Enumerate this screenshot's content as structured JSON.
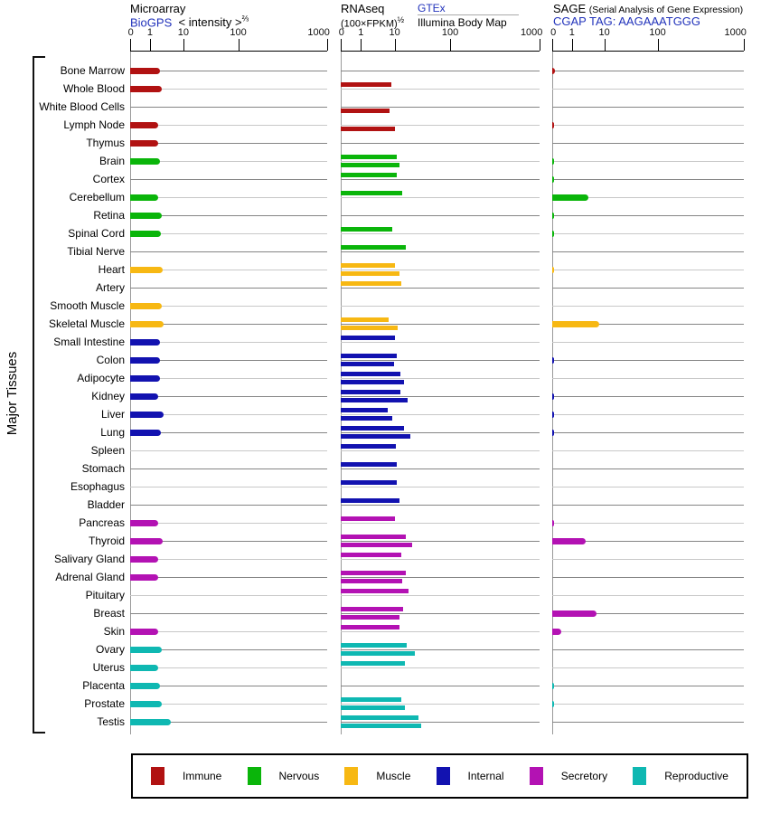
{
  "header": {
    "microarray": {
      "title": "Microarray",
      "link": "BioGPS",
      "scale_label": "< intensity >",
      "scale_exponent": "⅔"
    },
    "rnaseq": {
      "title": "RNAseq",
      "unit": "(100×FPKM)",
      "unit_exponent": "½",
      "link": "GTEx",
      "sub_source": "Illumina Body Map"
    },
    "sage": {
      "title": "SAGE",
      "subtitle": "(Serial Analysis of Gene Expression)",
      "link_line": "CGAP TAG: AAGAAATGGG"
    }
  },
  "side_label": "Major Tissues",
  "axis_ticks": [
    0,
    1,
    10,
    100,
    1000
  ],
  "legend": [
    {
      "label": "Immune",
      "color": "#b11212"
    },
    {
      "label": "Nervous",
      "color": "#0ab50a"
    },
    {
      "label": "Muscle",
      "color": "#f7b813"
    },
    {
      "label": "Internal",
      "color": "#1212b0"
    },
    {
      "label": "Secretory",
      "color": "#b312b3"
    },
    {
      "label": "Reproductive",
      "color": "#0fb8b2"
    }
  ],
  "chart_data": {
    "type": "bar",
    "title": "Gene expression across major tissues (Microarray / RNAseq / SAGE)",
    "orientation": "horizontal",
    "x_scale": "custom log-like; tick marks at 0, 1, 10, 100, 1000 on every panel",
    "xlim": [
      0,
      1000
    ],
    "grid": "one horizontal hairline per tissue row, alternating dark/light gray",
    "legend_position": "bottom boxed",
    "panels": [
      {
        "name": "Microarray",
        "source": "BioGPS",
        "unit": "intensity^(2/3)",
        "bars_per_row": 1
      },
      {
        "name": "RNAseq",
        "unit": "(100×FPKM)^(1/2)",
        "series": [
          "GTEx (upper bar)",
          "Illumina Body Map (lower bar)"
        ],
        "bars_per_row": 2
      },
      {
        "name": "SAGE",
        "source": "CGAP",
        "tag": "AAGAAATGGG",
        "bars_per_row": 1
      }
    ],
    "tissues": [
      {
        "name": "Bone Marrow",
        "category": "Immune",
        "microarray": 2.0,
        "rnaseq_gtex": null,
        "rnaseq_illumina": null,
        "sage": 0.15
      },
      {
        "name": "Whole Blood",
        "category": "Immune",
        "microarray": 2.2,
        "rnaseq_gtex": 8,
        "rnaseq_illumina": null,
        "sage": null
      },
      {
        "name": "White Blood Cells",
        "category": "Immune",
        "microarray": null,
        "rnaseq_gtex": null,
        "rnaseq_illumina": 7,
        "sage": null
      },
      {
        "name": "Lymph Node",
        "category": "Immune",
        "microarray": 1.8,
        "rnaseq_gtex": null,
        "rnaseq_illumina": 10,
        "sage": 0.1
      },
      {
        "name": "Thymus",
        "category": "Immune",
        "microarray": 1.8,
        "rnaseq_gtex": null,
        "rnaseq_illumina": null,
        "sage": null
      },
      {
        "name": "Brain",
        "category": "Nervous",
        "microarray": 2.0,
        "rnaseq_gtex": 11,
        "rnaseq_illumina": 12,
        "sage": 0.1
      },
      {
        "name": "Cortex",
        "category": "Nervous",
        "microarray": null,
        "rnaseq_gtex": 11,
        "rnaseq_illumina": null,
        "sage": 0.1
      },
      {
        "name": "Cerebellum",
        "category": "Nervous",
        "microarray": 1.7,
        "rnaseq_gtex": 13.5,
        "rnaseq_illumina": null,
        "sage": 3.3
      },
      {
        "name": "Retina",
        "category": "Nervous",
        "microarray": 2.3,
        "rnaseq_gtex": null,
        "rnaseq_illumina": null,
        "sage": 0.1
      },
      {
        "name": "Spinal Cord",
        "category": "Nervous",
        "microarray": 2.1,
        "rnaseq_gtex": 8.4,
        "rnaseq_illumina": null,
        "sage": 0.1
      },
      {
        "name": "Tibial Nerve",
        "category": "Nervous",
        "microarray": null,
        "rnaseq_gtex": 16,
        "rnaseq_illumina": null,
        "sage": null
      },
      {
        "name": "Heart",
        "category": "Muscle",
        "microarray": 2.4,
        "rnaseq_gtex": 10,
        "rnaseq_illumina": 12,
        "sage": 0.1
      },
      {
        "name": "Artery",
        "category": "Muscle",
        "microarray": null,
        "rnaseq_gtex": 13,
        "rnaseq_illumina": null,
        "sage": null
      },
      {
        "name": "Smooth Muscle",
        "category": "Muscle",
        "microarray": 2.2,
        "rnaseq_gtex": null,
        "rnaseq_illumina": null,
        "sage": null
      },
      {
        "name": "Skeletal Muscle",
        "category": "Muscle",
        "microarray": 2.5,
        "rnaseq_gtex": 6.7,
        "rnaseq_illumina": 11.4,
        "sage": 7
      },
      {
        "name": "Small Intestine",
        "category": "Internal",
        "microarray": 2.0,
        "rnaseq_gtex": 10,
        "rnaseq_illumina": null,
        "sage": null
      },
      {
        "name": "Colon",
        "category": "Internal",
        "microarray": 2.0,
        "rnaseq_gtex": 11,
        "rnaseq_illumina": 9.5,
        "sage": 0.1
      },
      {
        "name": "Adipocyte",
        "category": "Internal",
        "microarray": 2.0,
        "rnaseq_gtex": 12.5,
        "rnaseq_illumina": 15,
        "sage": null
      },
      {
        "name": "Kidney",
        "category": "Internal",
        "microarray": 1.7,
        "rnaseq_gtex": 12.8,
        "rnaseq_illumina": 17,
        "sage": 0.1
      },
      {
        "name": "Liver",
        "category": "Internal",
        "microarray": 2.5,
        "rnaseq_gtex": 6.4,
        "rnaseq_illumina": 8.5,
        "sage": 0.1
      },
      {
        "name": "Lung",
        "category": "Internal",
        "microarray": 2.1,
        "rnaseq_gtex": 14.6,
        "rnaseq_illumina": 19,
        "sage": 0.1
      },
      {
        "name": "Spleen",
        "category": "Internal",
        "microarray": null,
        "rnaseq_gtex": 10.7,
        "rnaseq_illumina": null,
        "sage": null
      },
      {
        "name": "Stomach",
        "category": "Internal",
        "microarray": null,
        "rnaseq_gtex": 11,
        "rnaseq_illumina": null,
        "sage": null
      },
      {
        "name": "Esophagus",
        "category": "Internal",
        "microarray": null,
        "rnaseq_gtex": 11,
        "rnaseq_illumina": null,
        "sage": null
      },
      {
        "name": "Bladder",
        "category": "Internal",
        "microarray": null,
        "rnaseq_gtex": 12.4,
        "rnaseq_illumina": null,
        "sage": null
      },
      {
        "name": "Pancreas",
        "category": "Secretory",
        "microarray": 1.7,
        "rnaseq_gtex": 10,
        "rnaseq_illumina": null,
        "sage": 0.1
      },
      {
        "name": "Thyroid",
        "category": "Secretory",
        "microarray": 2.4,
        "rnaseq_gtex": 16,
        "rnaseq_illumina": 20.5,
        "sage": 2.7
      },
      {
        "name": "Salivary Gland",
        "category": "Secretory",
        "microarray": 1.7,
        "rnaseq_gtex": 13,
        "rnaseq_illumina": null,
        "sage": null
      },
      {
        "name": "Adrenal Gland",
        "category": "Secretory",
        "microarray": 1.8,
        "rnaseq_gtex": 16,
        "rnaseq_illumina": 13.7,
        "sage": null
      },
      {
        "name": "Pituitary",
        "category": "Secretory",
        "microarray": null,
        "rnaseq_gtex": 18,
        "rnaseq_illumina": null,
        "sage": null
      },
      {
        "name": "Breast",
        "category": "Secretory",
        "microarray": null,
        "rnaseq_gtex": 14,
        "rnaseq_illumina": 12.4,
        "sage": 5.8
      },
      {
        "name": "Skin",
        "category": "Secretory",
        "microarray": 1.7,
        "rnaseq_gtex": 12,
        "rnaseq_illumina": null,
        "sage": 0.45
      },
      {
        "name": "Ovary",
        "category": "Reproductive",
        "microarray": 2.3,
        "rnaseq_gtex": 16.4,
        "rnaseq_illumina": 23,
        "sage": null
      },
      {
        "name": "Uterus",
        "category": "Reproductive",
        "microarray": 1.8,
        "rnaseq_gtex": 15.5,
        "rnaseq_illumina": null,
        "sage": null
      },
      {
        "name": "Placenta",
        "category": "Reproductive",
        "microarray": 2.0,
        "rnaseq_gtex": null,
        "rnaseq_illumina": null,
        "sage": 0.1
      },
      {
        "name": "Prostate",
        "category": "Reproductive",
        "microarray": 2.3,
        "rnaseq_gtex": 13.4,
        "rnaseq_illumina": 15.5,
        "sage": 0.1
      },
      {
        "name": "Testis",
        "category": "Reproductive",
        "microarray": 4.2,
        "rnaseq_gtex": 27,
        "rnaseq_illumina": 30,
        "sage": null
      }
    ]
  }
}
